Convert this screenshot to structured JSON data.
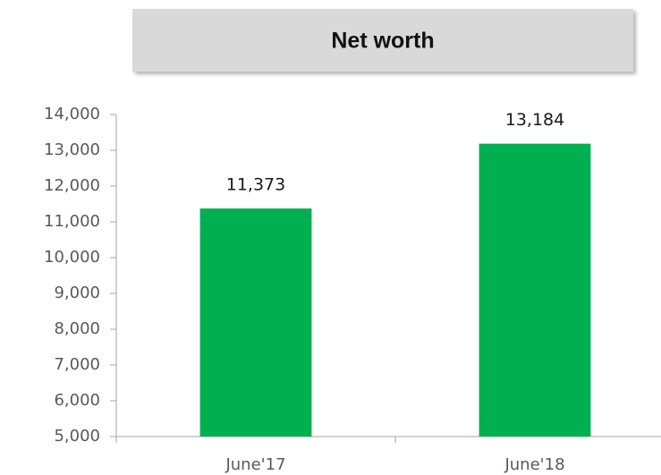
{
  "chart_data": {
    "type": "bar",
    "title": "Net worth",
    "categories": [
      "June'17",
      "June'18"
    ],
    "values": [
      11373,
      13184
    ],
    "value_labels": [
      "11,373",
      "13,184"
    ],
    "color": "#00b050",
    "ylim": [
      5000,
      14000
    ],
    "yticks": [
      {
        "value": 5000,
        "label": "5,000"
      },
      {
        "value": 6000,
        "label": "6,000"
      },
      {
        "value": 7000,
        "label": "7,000"
      },
      {
        "value": 8000,
        "label": "8,000"
      },
      {
        "value": 9000,
        "label": "9,000"
      },
      {
        "value": 10000,
        "label": "10,000"
      },
      {
        "value": 11000,
        "label": "11,000"
      },
      {
        "value": 12000,
        "label": "12,000"
      },
      {
        "value": 13000,
        "label": "13,000"
      },
      {
        "value": 14000,
        "label": "14,000"
      }
    ],
    "grid": false
  }
}
